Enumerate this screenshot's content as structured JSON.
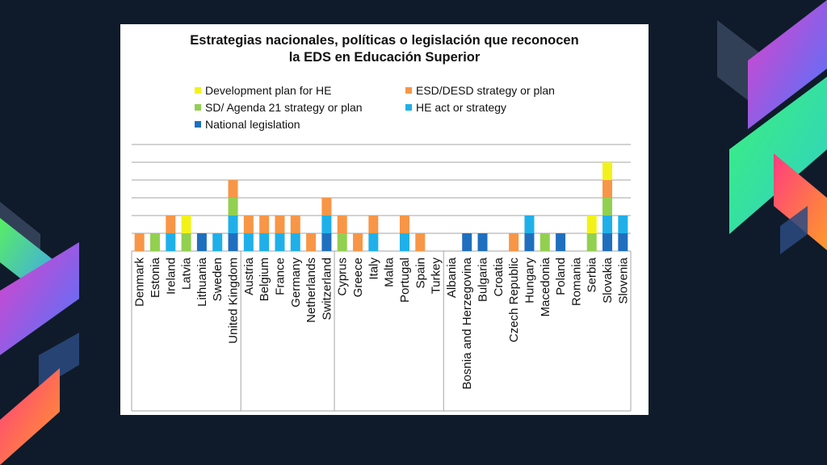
{
  "colors": {
    "background": "#0f1b2a",
    "card": "#ffffff",
    "gridline": "#a6a6a6"
  },
  "chart_data": {
    "type": "bar",
    "stacked": true,
    "title_line1": "Estrategias nacionales, políticas o legislación que reconocen",
    "title_line2": "la EDS en Educación Superior",
    "xlabel": "",
    "ylabel": "",
    "ylim": [
      0,
      6
    ],
    "grid": true,
    "legend_position": "top",
    "categories": [
      "Denmark",
      "Estonia",
      "Ireland",
      "Latvia",
      "Lithuania",
      "Sweden",
      "United Kingdom",
      "Austria",
      "Belgium",
      "France",
      "Germany",
      "Netherlands",
      "Switzerland",
      "Cyprus",
      "Greece",
      "Italy",
      "Malta",
      "Portugal",
      "Spain",
      "Turkey",
      "Albania",
      "Bosnia and Herzegovina",
      "Bulgaria",
      "Croatia",
      "Czech Republic",
      "Hungary",
      "Macedonia",
      "Poland",
      "Romania",
      "Serbia",
      "Slovakia",
      "Slovenia"
    ],
    "groups": [
      {
        "from": 0,
        "to": 6
      },
      {
        "from": 7,
        "to": 12
      },
      {
        "from": 13,
        "to": 19
      },
      {
        "from": 20,
        "to": 31
      }
    ],
    "series": [
      {
        "name": "National legislation",
        "color": "#1f6fbf",
        "values": [
          0,
          0,
          0,
          0,
          1,
          0,
          1,
          0,
          0,
          0,
          0,
          0,
          1,
          0,
          0,
          0,
          0,
          0,
          0,
          0,
          0,
          1,
          1,
          0,
          0,
          1,
          0,
          1,
          0,
          0,
          1,
          1
        ]
      },
      {
        "name": "HE act or strategy",
        "color": "#1fb0ea",
        "values": [
          0,
          0,
          1,
          0,
          0,
          1,
          1,
          1,
          1,
          1,
          1,
          0,
          1,
          0,
          0,
          1,
          0,
          1,
          0,
          0,
          0,
          0,
          0,
          0,
          0,
          1,
          0,
          0,
          0,
          0,
          1,
          1
        ]
      },
      {
        "name": "SD/ Agenda 21 strategy or plan",
        "color": "#92d050",
        "values": [
          0,
          1,
          0,
          1,
          0,
          0,
          1,
          0,
          0,
          0,
          0,
          0,
          0,
          1,
          0,
          0,
          0,
          0,
          0,
          0,
          0,
          0,
          0,
          0,
          0,
          0,
          1,
          0,
          0,
          1,
          1,
          0
        ]
      },
      {
        "name": "ESD/DESD strategy or plan",
        "color": "#f79646",
        "values": [
          1,
          0,
          1,
          0,
          0,
          0,
          1,
          1,
          1,
          1,
          1,
          1,
          1,
          1,
          1,
          1,
          0,
          1,
          1,
          0,
          0,
          0,
          0,
          0,
          1,
          0,
          0,
          0,
          0,
          0,
          1,
          0
        ]
      },
      {
        "name": "Development plan for HE",
        "color": "#f2f21a",
        "values": [
          0,
          0,
          0,
          1,
          0,
          0,
          0,
          0,
          0,
          0,
          0,
          0,
          0,
          0,
          0,
          0,
          0,
          0,
          0,
          0,
          0,
          0,
          0,
          0,
          0,
          0,
          0,
          0,
          0,
          1,
          1,
          0
        ]
      }
    ],
    "legend_order": [
      "Development plan for HE",
      "ESD/DESD strategy or plan",
      "SD/ Agenda 21 strategy or plan",
      "HE act or strategy",
      "National legislation"
    ]
  }
}
